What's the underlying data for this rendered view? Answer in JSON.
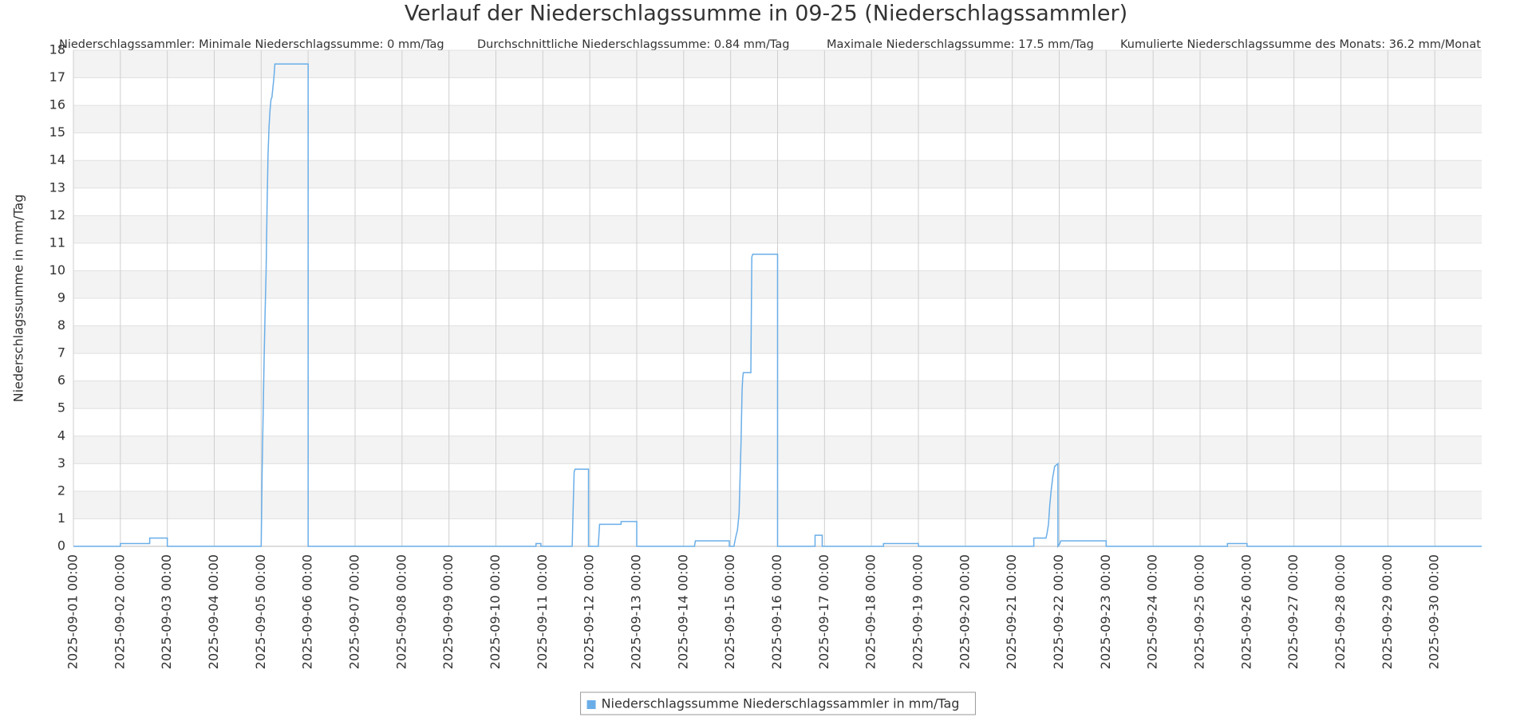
{
  "chart_data": {
    "type": "line",
    "title": "Verlauf der Niederschlagssumme in 09-25 (Niederschlagssammler)",
    "stats": [
      "Niederschlagssammler: Minimale Niederschlagssumme: 0 mm/Tag",
      "Durchschnittliche Niederschlagssumme: 0.84 mm/Tag",
      "Maximale Niederschlagssumme: 17.5 mm/Tag",
      "Kumulierte Niederschlagssumme des Monats: 36.2 mm/Monat"
    ],
    "y_label": "Niederschlagssumme in mm/Tag",
    "grid": true,
    "x": [
      "2025-09-01 00:00",
      "2025-09-02 00:00",
      "2025-09-02 00:00",
      "2025-09-02 15:00",
      "2025-09-02 15:00",
      "2025-09-03 00:00",
      "2025-09-03 00:00",
      "2025-09-05 00:00",
      "2025-09-05 00:30",
      "2025-09-05 01:00",
      "2025-09-05 01:30",
      "2025-09-05 02:00",
      "2025-09-05 02:30",
      "2025-09-05 03:00",
      "2025-09-05 03:30",
      "2025-09-05 04:00",
      "2025-09-05 04:30",
      "2025-09-05 05:00",
      "2025-09-05 05:30",
      "2025-09-05 06:30",
      "2025-09-05 07:00",
      "2025-09-06 00:00",
      "2025-09-06 00:00",
      "2025-09-10 20:30",
      "2025-09-10 20:30",
      "2025-09-10 23:00",
      "2025-09-10 23:00",
      "2025-09-11 15:00",
      "2025-09-11 15:30",
      "2025-09-11 16:00",
      "2025-09-11 16:30",
      "2025-09-11 23:20",
      "2025-09-11 23:20",
      "2025-09-12 04:20",
      "2025-09-12 05:00",
      "2025-09-12 16:00",
      "2025-09-12 16:00",
      "2025-09-13 00:00",
      "2025-09-13 00:00",
      "2025-09-14 05:30",
      "2025-09-14 06:00",
      "2025-09-14 23:20",
      "2025-09-14 23:20",
      "2025-09-15 01:40",
      "2025-09-15 02:30",
      "2025-09-15 03:30",
      "2025-09-15 04:20",
      "2025-09-15 04:50",
      "2025-09-15 05:20",
      "2025-09-15 05:50",
      "2025-09-15 06:10",
      "2025-09-15 06:30",
      "2025-09-15 10:20",
      "2025-09-15 10:50",
      "2025-09-15 11:20",
      "2025-09-16 00:00",
      "2025-09-16 00:00",
      "2025-09-16 19:10",
      "2025-09-16 19:10",
      "2025-09-16 22:50",
      "2025-09-16 22:50",
      "2025-09-18 06:10",
      "2025-09-18 06:10",
      "2025-09-19 00:00",
      "2025-09-19 00:00",
      "2025-09-21 11:00",
      "2025-09-21 11:00",
      "2025-09-21 17:15",
      "2025-09-21 17:50",
      "2025-09-21 18:30",
      "2025-09-21 19:10",
      "2025-09-21 19:50",
      "2025-09-21 20:40",
      "2025-09-21 21:40",
      "2025-09-21 23:20",
      "2025-09-21 23:20",
      "2025-09-22 00:20",
      "2025-09-22 00:45",
      "2025-09-23 00:00",
      "2025-09-23 00:00",
      "2025-09-25 14:00",
      "2025-09-25 14:00",
      "2025-09-26 00:00",
      "2025-09-26 00:00",
      "2025-10-01 00:00"
    ],
    "series": [
      {
        "name": "Niederschlagssumme Niederschlagssammler in mm/Tag",
        "color": "#6aaee8",
        "values": [
          0,
          0,
          0.1,
          0.1,
          0.3,
          0.3,
          0,
          0,
          2.8,
          4.8,
          6.8,
          8.5,
          9.9,
          12.3,
          14.2,
          15.2,
          15.8,
          16.2,
          16.3,
          17.0,
          17.5,
          17.5,
          0,
          0,
          0.1,
          0.1,
          0,
          0,
          1.4,
          2.7,
          2.8,
          2.8,
          0,
          0,
          0.8,
          0.8,
          0.9,
          0.9,
          0,
          0,
          0.2,
          0.2,
          0,
          0,
          0.3,
          0.6,
          1.2,
          2.5,
          3.8,
          5.6,
          6.1,
          6.3,
          6.3,
          10.5,
          10.6,
          10.6,
          0,
          0,
          0.4,
          0.4,
          0,
          0,
          0.1,
          0.1,
          0,
          0,
          0.3,
          0.3,
          0.5,
          0.8,
          1.5,
          2.0,
          2.5,
          2.9,
          3.0,
          0,
          0.1,
          0.2,
          0.2,
          0,
          0,
          0.1,
          0.1,
          0,
          0
        ]
      }
    ],
    "xlim": [
      "2025-09-01 00:00",
      "2025-10-01 00:00"
    ],
    "xticks": [
      "2025-09-01 00:00",
      "2025-09-02 00:00",
      "2025-09-03 00:00",
      "2025-09-04 00:00",
      "2025-09-05 00:00",
      "2025-09-06 00:00",
      "2025-09-07 00:00",
      "2025-09-08 00:00",
      "2025-09-09 00:00",
      "2025-09-10 00:00",
      "2025-09-11 00:00",
      "2025-09-12 00:00",
      "2025-09-13 00:00",
      "2025-09-14 00:00",
      "2025-09-15 00:00",
      "2025-09-16 00:00",
      "2025-09-17 00:00",
      "2025-09-18 00:00",
      "2025-09-19 00:00",
      "2025-09-20 00:00",
      "2025-09-21 00:00",
      "2025-09-22 00:00",
      "2025-09-23 00:00",
      "2025-09-24 00:00",
      "2025-09-25 00:00",
      "2025-09-26 00:00",
      "2025-09-27 00:00",
      "2025-09-28 00:00",
      "2025-09-29 00:00",
      "2025-09-30 00:00"
    ],
    "ylim": [
      0,
      18
    ],
    "yticks": [
      0,
      1,
      2,
      3,
      4,
      5,
      6,
      7,
      8,
      9,
      10,
      11,
      12,
      13,
      14,
      15,
      16,
      17,
      18
    ]
  }
}
